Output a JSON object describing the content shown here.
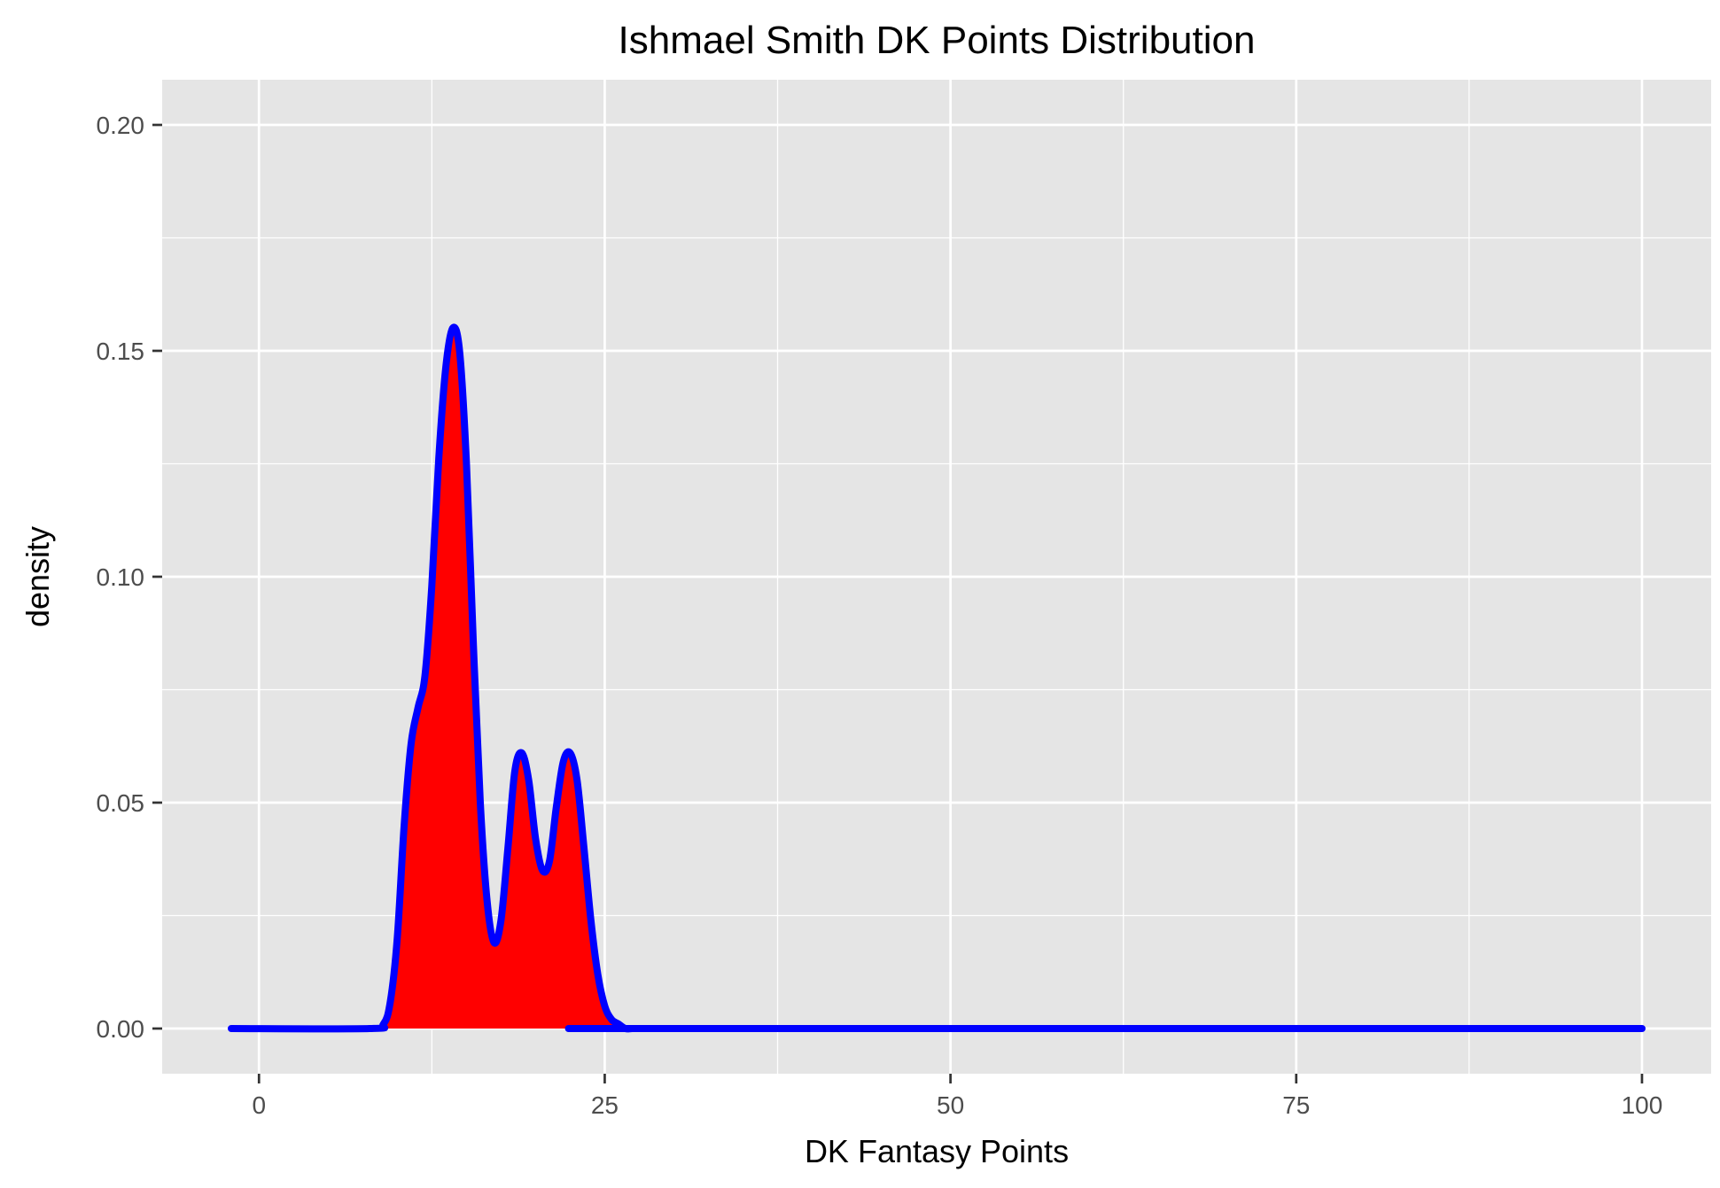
{
  "chart_data": {
    "type": "area",
    "title": "Ishmael Smith DK Points Distribution",
    "xlabel": "DK Fantasy Points",
    "ylabel": "density",
    "xlim": [
      -7,
      105
    ],
    "ylim": [
      -0.01,
      0.21
    ],
    "x_ticks": [
      0,
      25,
      50,
      75,
      100
    ],
    "x_tick_labels": [
      "0",
      "25",
      "50",
      "75",
      "100"
    ],
    "y_ticks": [
      0,
      0.05,
      0.1,
      0.15,
      0.2
    ],
    "y_tick_labels": [
      "0.00",
      "0.05",
      "0.10",
      "0.15",
      "0.20"
    ],
    "grid": true,
    "legend": "none",
    "colors": {
      "panel_background": "#e5e5e5",
      "grid": "#ffffff",
      "fill": "#ff0000",
      "line": "#0000ff"
    },
    "series": [
      {
        "x": [
          -2,
          8,
          9,
          9.5,
          10,
          10.5,
          11,
          11.5,
          12,
          12.5,
          13,
          13.5,
          14,
          14.5,
          15,
          15.5,
          16,
          16.5,
          17,
          17.5,
          18,
          18.5,
          19,
          19.5,
          20,
          20.5,
          21,
          21.5,
          22,
          22.5,
          23,
          23.5,
          24,
          24.5,
          25,
          25.5,
          26,
          26.5,
          27,
          28,
          100
        ],
        "y": [
          0,
          0,
          0.001,
          0.006,
          0.02,
          0.045,
          0.063,
          0.071,
          0.078,
          0.098,
          0.126,
          0.146,
          0.155,
          0.15,
          0.125,
          0.085,
          0.05,
          0.028,
          0.019,
          0.024,
          0.04,
          0.057,
          0.061,
          0.055,
          0.042,
          0.035,
          0.037,
          0.049,
          0.059,
          0.061,
          0.055,
          0.04,
          0.024,
          0.012,
          0.005,
          0.002,
          0.001,
          0,
          0,
          0,
          0
        ]
      }
    ]
  }
}
